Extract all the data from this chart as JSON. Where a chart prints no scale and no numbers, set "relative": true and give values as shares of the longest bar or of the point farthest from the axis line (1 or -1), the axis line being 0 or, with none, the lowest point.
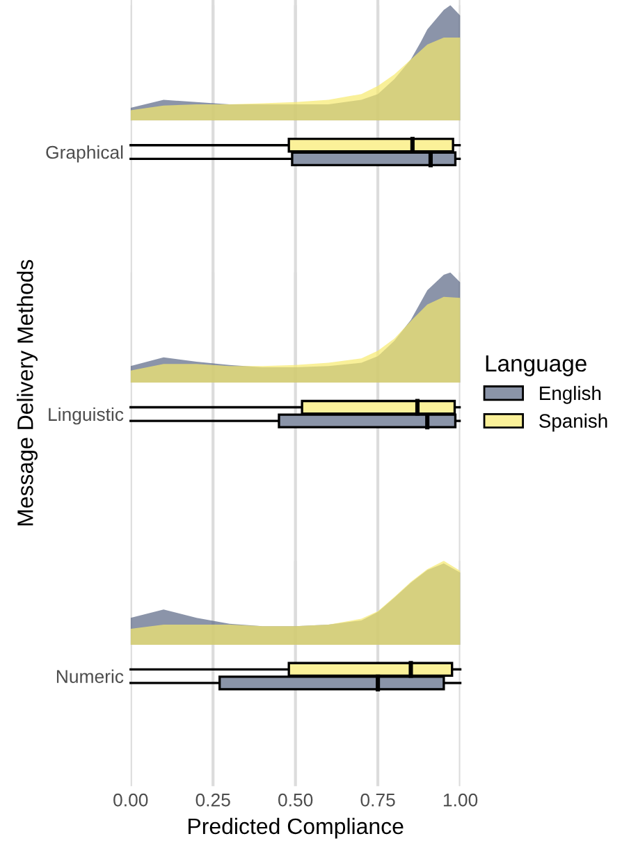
{
  "chart_data": [
    {
      "type": "area",
      "relative": true,
      "grid": "x",
      "xlim": [
        0,
        1
      ],
      "tick_labels": false,
      "series": [
        {
          "color": "#5a6785",
          "x": [
            0,
            0.1,
            0.2,
            0.3,
            0.4,
            0.5,
            0.6,
            0.7,
            0.75,
            0.8,
            0.85,
            0.88,
            0.9,
            0.95,
            0.97,
            1.0
          ],
          "values": [
            0.11,
            0.18,
            0.16,
            0.14,
            0.14,
            0.14,
            0.14,
            0.18,
            0.23,
            0.36,
            0.53,
            0.68,
            0.79,
            0.96,
            1.0,
            0.91
          ]
        },
        {
          "color": "#f7ea6e",
          "x": [
            0,
            0.1,
            0.2,
            0.3,
            0.4,
            0.5,
            0.6,
            0.7,
            0.75,
            0.8,
            0.85,
            0.9,
            0.95,
            1.0
          ],
          "values": [
            0.09,
            0.13,
            0.14,
            0.14,
            0.15,
            0.16,
            0.18,
            0.23,
            0.3,
            0.4,
            0.53,
            0.66,
            0.72,
            0.72
          ]
        }
      ]
    },
    {
      "type": "area",
      "relative": true,
      "grid": "x",
      "xlim": [
        0,
        1
      ],
      "tick_labels": false,
      "series": [
        {
          "color": "#5a6785",
          "x": [
            0,
            0.1,
            0.2,
            0.3,
            0.4,
            0.5,
            0.6,
            0.7,
            0.75,
            0.8,
            0.85,
            0.9,
            0.95,
            0.97,
            1.0
          ],
          "values": [
            0.15,
            0.23,
            0.19,
            0.16,
            0.14,
            0.14,
            0.15,
            0.18,
            0.24,
            0.38,
            0.57,
            0.84,
            0.98,
            1.0,
            0.91
          ]
        },
        {
          "color": "#f7ea6e",
          "x": [
            0,
            0.1,
            0.2,
            0.3,
            0.4,
            0.5,
            0.6,
            0.7,
            0.75,
            0.8,
            0.85,
            0.9,
            0.95,
            1.0
          ],
          "values": [
            0.11,
            0.17,
            0.17,
            0.15,
            0.15,
            0.16,
            0.18,
            0.22,
            0.29,
            0.4,
            0.56,
            0.71,
            0.78,
            0.77
          ]
        }
      ]
    },
    {
      "type": "area",
      "relative": true,
      "grid": "x",
      "xlim": [
        0,
        1
      ],
      "tick_labels": false,
      "series": [
        {
          "color": "#5a6785",
          "x": [
            0,
            0.1,
            0.2,
            0.3,
            0.4,
            0.5,
            0.6,
            0.7,
            0.75,
            0.8,
            0.85,
            0.9,
            0.95,
            1.0
          ],
          "values": [
            0.32,
            0.42,
            0.32,
            0.25,
            0.22,
            0.22,
            0.24,
            0.29,
            0.39,
            0.56,
            0.74,
            0.89,
            0.97,
            0.86
          ]
        },
        {
          "color": "#f7ea6e",
          "x": [
            0,
            0.1,
            0.2,
            0.3,
            0.4,
            0.5,
            0.6,
            0.7,
            0.75,
            0.8,
            0.85,
            0.9,
            0.95,
            1.0
          ],
          "values": [
            0.19,
            0.24,
            0.24,
            0.24,
            0.22,
            0.22,
            0.24,
            0.31,
            0.4,
            0.57,
            0.75,
            0.9,
            1.0,
            0.88
          ]
        }
      ]
    },
    {
      "type": "box",
      "orientation": "horizontal",
      "categories": [
        "Graphical",
        "Linguistic",
        "Numeric"
      ],
      "xlabel": "Predicted Compliance",
      "ylabel": "Message Delivery Methods",
      "legend_title": "Language",
      "legend": "right",
      "grid": "x",
      "xlim": [
        0,
        1
      ],
      "xticks": [
        {
          "value": 0,
          "label": "0.00"
        },
        {
          "value": 0.25,
          "label": "0.25"
        },
        {
          "value": 0.5,
          "label": "0.50"
        },
        {
          "value": 0.75,
          "label": "0.75"
        },
        {
          "value": 1,
          "label": "1.00"
        }
      ],
      "series": [
        {
          "name": "English",
          "color": "#8a94a8",
          "boxes": [
            {
              "low": 0.0,
              "q1": 0.49,
              "median": 0.91,
              "q3": 0.985,
              "high": 0.998
            },
            {
              "low": 0.0,
              "q1": 0.45,
              "median": 0.9,
              "q3": 0.985,
              "high": 0.998
            },
            {
              "low": 0.0,
              "q1": 0.27,
              "median": 0.75,
              "q3": 0.95,
              "high": 1.0
            }
          ]
        },
        {
          "name": "Spanish",
          "color": "#fbf199",
          "boxes": [
            {
              "low": 0.0,
              "q1": 0.48,
              "median": 0.855,
              "q3": 0.978,
              "high": 0.998
            },
            {
              "low": 0.0,
              "q1": 0.52,
              "median": 0.87,
              "q3": 0.983,
              "high": 0.998
            },
            {
              "low": 0.0,
              "q1": 0.48,
              "median": 0.85,
              "q3": 0.975,
              "high": 1.0
            }
          ]
        }
      ]
    }
  ]
}
